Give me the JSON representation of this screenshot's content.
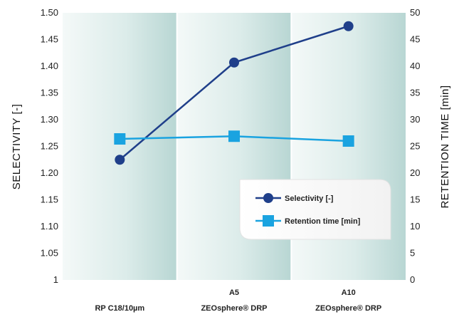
{
  "chart_data": {
    "type": "line",
    "categories": [
      {
        "line1": "RP C18/10µm",
        "line2": ""
      },
      {
        "line1": "A5",
        "line2": "ZEOsphere® DRP"
      },
      {
        "line1": "A10",
        "line2": "ZEOsphere® DRP"
      }
    ],
    "ylabel": "SELECTIVITY [-]",
    "y2label": "RETENTION TIME [min]",
    "ylim": [
      1,
      1.5
    ],
    "y2lim": [
      0,
      50
    ],
    "yticks": [
      "1.50",
      "1.45",
      "1.40",
      "1.35",
      "1.30",
      "1.25",
      "1.20",
      "1.15",
      "1.10",
      "1.05",
      "1"
    ],
    "y2ticks": [
      "50",
      "45",
      "40",
      "35",
      "30",
      "25",
      "20",
      "15",
      "10",
      "5",
      "0"
    ],
    "series": [
      {
        "name": "Selectivity [-]",
        "axis": "left",
        "values": [
          1.225,
          1.407,
          1.475
        ],
        "color": "#1f3f8a",
        "marker": "circle"
      },
      {
        "name": "Retention time [min]",
        "axis": "right",
        "values": [
          26.4,
          26.9,
          26.0
        ],
        "color": "#1aa3e0",
        "marker": "square"
      }
    ],
    "legend_position": "bottom-right",
    "grid": false
  }
}
